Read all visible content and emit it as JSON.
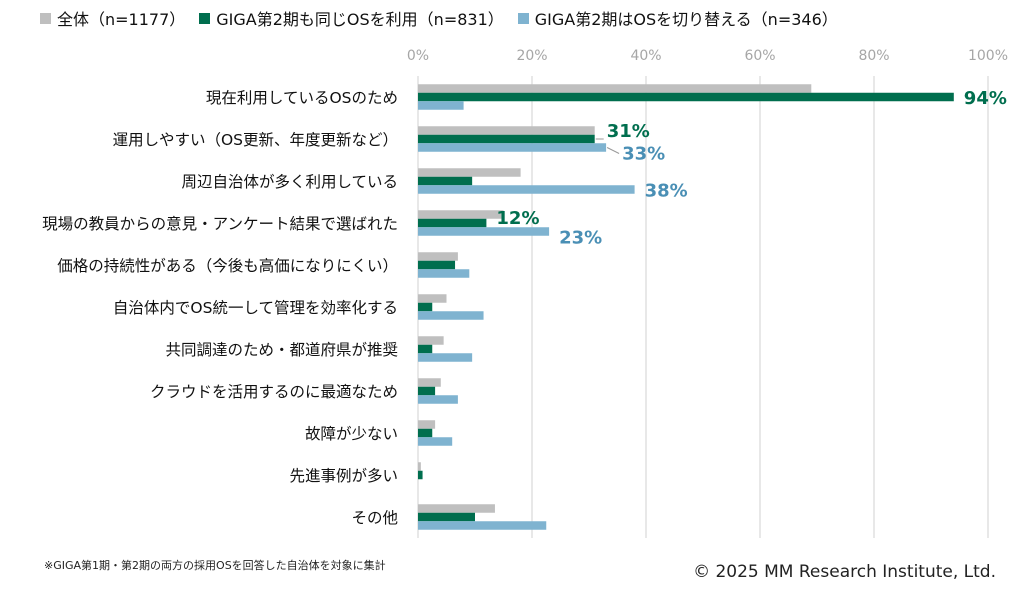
{
  "chart_data": {
    "type": "bar",
    "orientation": "horizontal",
    "categories": [
      "現在利用しているOSのため",
      "運用しやすい（OS更新、年度更新など）",
      "周辺自治体が多く利用している",
      "現場の教員からの意見・アンケート結果で選ばれた",
      "価格の持続性がある（今後も高価になりにくい）",
      "自治体内でOS統一して管理を効率化する",
      "共同調達のため・都道府県が推奨",
      "クラウドを活用するのに最適なため",
      "故障が少ない",
      "先進事例が多い",
      "その他"
    ],
    "series": [
      {
        "name": "全体（n=1177）",
        "color": "#bfbfbf",
        "values": [
          69,
          31,
          18,
          15,
          7,
          5,
          4.5,
          4,
          3,
          0.5,
          13.5
        ]
      },
      {
        "name": "GIGA第2期も同じOSを利用（n=831）",
        "color": "#006e4e",
        "values": [
          94,
          31,
          9.5,
          12,
          6.5,
          2.5,
          2.5,
          3,
          2.5,
          0.8,
          10
        ]
      },
      {
        "name": "GIGA第2期はOSを切り替える（n=346）",
        "color": "#7fb3d0",
        "values": [
          8,
          33,
          38,
          23,
          9,
          11.5,
          9.5,
          7,
          6,
          0,
          22.5
        ]
      }
    ],
    "data_labels": [
      {
        "category_index": 0,
        "series_index": 1,
        "text": "94%"
      },
      {
        "category_index": 1,
        "series_index": 1,
        "text": "31%"
      },
      {
        "category_index": 1,
        "series_index": 2,
        "text": "33%"
      },
      {
        "category_index": 2,
        "series_index": 2,
        "text": "38%"
      },
      {
        "category_index": 3,
        "series_index": 1,
        "text": "12%"
      },
      {
        "category_index": 3,
        "series_index": 2,
        "text": "23%"
      }
    ],
    "xlim": [
      0,
      100
    ],
    "x_ticks": [
      "0%",
      "20%",
      "40%",
      "60%",
      "80%",
      "100%"
    ],
    "grid": true,
    "legend_position": "top",
    "axis_tick_color": "#a6a6a6",
    "grid_color": "#d9d9d9",
    "label_colors": {
      "1": "#006e4e",
      "2": "#4a8fb5"
    }
  },
  "footnote": "※GIGA第1期・第2期の両方の採用OSを回答した自治体を対象に集計",
  "copyright": "© 2025 MM Research Institute, Ltd."
}
